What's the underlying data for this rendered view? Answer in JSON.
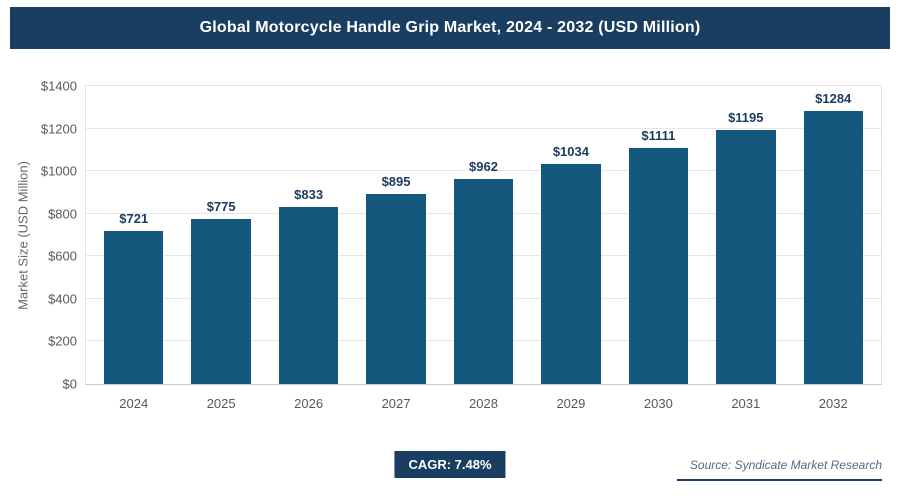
{
  "header": {
    "title": "Global Motorcycle Handle Grip Market, 2024 - 2032 (USD Million)"
  },
  "chart_data": {
    "type": "bar",
    "title": "Global Motorcycle Handle Grip Market, 2024 - 2032 (USD Million)",
    "categories": [
      "2024",
      "2025",
      "2026",
      "2027",
      "2028",
      "2029",
      "2030",
      "2031",
      "2032"
    ],
    "values": [
      721,
      775,
      833,
      895,
      962,
      1034,
      1111,
      1195,
      1284
    ],
    "value_labels": [
      "$721",
      "$775",
      "$833",
      "$895",
      "$962",
      "$1034",
      "$1111",
      "$1195",
      "$1284"
    ],
    "xlabel": "",
    "ylabel": "Market Size (USD Million)",
    "ylim": [
      0,
      1400
    ],
    "ytick_step": 200,
    "ytick_labels": [
      "$0",
      "$200",
      "$400",
      "$600",
      "$800",
      "$1000",
      "$1200",
      "$1400"
    ],
    "grid": true,
    "legend": "none",
    "bar_color": "#15587e"
  },
  "footer": {
    "cagr_label": "CAGR: 7.48%",
    "source": "Source: Syndicate Market Research"
  },
  "colors": {
    "banner_bg": "#1a3e62",
    "bar": "#15587e",
    "badge_bg": "#1a3e62",
    "grid": "#e6e6e6",
    "axis_text": "#595959"
  }
}
